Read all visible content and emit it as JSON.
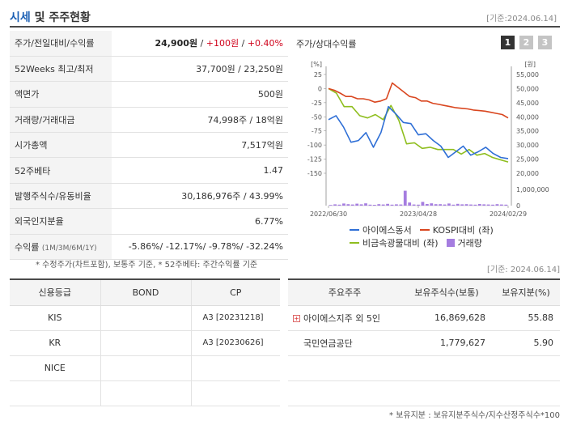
{
  "header": {
    "title_accent": "시세",
    "title_rest": " 및 주주현황",
    "date": "[기준:2024.06.14]"
  },
  "quote": {
    "price_label": "주가/전일대비/수익률",
    "price": "24,900원",
    "sep": " / ",
    "change": "+100원",
    "change_pct": "+0.40%",
    "rows": [
      {
        "label": "52Weeks 최고/최저",
        "value": "37,700원 / 23,250원"
      },
      {
        "label": "액면가",
        "value": "500원"
      },
      {
        "label": "거래량/거래대금",
        "value": "74,998주 / 18억원"
      },
      {
        "label": "시가총액",
        "value": "7,517억원"
      },
      {
        "label": "52주베타",
        "value": "1.47"
      },
      {
        "label": "발행주식수/유동비율",
        "value": "30,186,976주 / 43.99%"
      },
      {
        "label": "외국인지분율",
        "value": "6.77%"
      }
    ],
    "return_label": "수익률",
    "return_periods": "(1M/3M/6M/1Y)",
    "returns": [
      "-5.86%/",
      " -12.17%/",
      " -9.78%/",
      " -32.24%"
    ]
  },
  "chart_panel": {
    "title": "주가/상대수익률",
    "tabs": [
      "1",
      "2",
      "3"
    ],
    "active_tab": 0
  },
  "chart_data": {
    "type": "line",
    "left_axis": {
      "unit": "[%]",
      "ticks": [
        "25",
        "0",
        "-25",
        "-50",
        "-75",
        "-100",
        "-125",
        "-150"
      ],
      "range": [
        -150,
        25
      ]
    },
    "right_axis": {
      "unit": "[원]",
      "ticks": [
        "55,000",
        "50,000",
        "45,000",
        "40,000",
        "35,000",
        "30,000",
        "25,000",
        "20,000"
      ],
      "range": [
        20000,
        55000
      ]
    },
    "volume_axis": {
      "ticks": [
        "1,000,000",
        "0"
      ],
      "range": [
        0,
        1000000
      ]
    },
    "x_ticks": [
      "2022/06/30",
      "2023/04/28",
      "2024/02/29"
    ],
    "x_tick_index": [
      0,
      20,
      40
    ],
    "series": [
      {
        "name": "아이에스동서",
        "color": "#2f6fd6",
        "axis": "left",
        "values": [
          -55,
          -48,
          -68,
          -95,
          -92,
          -78,
          -104,
          -78,
          -32,
          -45,
          -60,
          -62,
          -82,
          -80,
          -92,
          -102,
          -122,
          -112,
          -102,
          -118,
          -112,
          -104,
          -115,
          -122,
          -124
        ]
      },
      {
        "name": "KOSPI대비",
        "color": "#d9461f",
        "axis": "left",
        "values": [
          0,
          -3,
          -8,
          -14,
          -14,
          -18,
          -18,
          -20,
          -24,
          -22,
          -18,
          10,
          2,
          -6,
          -14,
          -16,
          -22,
          -22,
          -26,
          -28,
          -30,
          -32,
          -34,
          -35,
          -36,
          -38,
          -39,
          -40,
          -42,
          -44,
          -46,
          -52
        ]
      },
      {
        "name": "비금속광물대비",
        "color": "#8fbe1f",
        "axis": "left",
        "values": [
          0,
          -8,
          -32,
          -32,
          -48,
          -52,
          -46,
          -55,
          -30,
          -56,
          -98,
          -96,
          -106,
          -104,
          -108,
          -108,
          -108,
          -116,
          -108,
          -118,
          -115,
          -122,
          -126,
          -130
        ]
      },
      {
        "name": "거래량",
        "color": "#a57de0",
        "axis": "volume",
        "values": [
          40000,
          80000,
          60000,
          130000,
          90000,
          70000,
          120000,
          80000,
          140000,
          60000,
          50000,
          90000,
          70000,
          110000,
          60000,
          80000,
          70000,
          920000,
          190000,
          70000,
          60000,
          230000,
          100000,
          140000,
          90000,
          90000,
          70000,
          130000,
          60000,
          110000,
          80000,
          90000,
          70000,
          60000,
          100000,
          80000,
          70000,
          60000,
          90000,
          70000,
          60000
        ]
      }
    ]
  },
  "notes": {
    "left": "* 수정주가(차트포함), 보통주 기준, * 52주베타: 주간수익률 기준",
    "right": "[기준: 2024.06.14]",
    "bottom": "* 보유지분 : 보유지분주식수/지수산정주식수*100"
  },
  "credit": {
    "headers": [
      "신용등급",
      "BOND",
      "CP"
    ],
    "rows": [
      {
        "agency": "KIS",
        "bond": "",
        "cp": "A3 [20231218]"
      },
      {
        "agency": "KR",
        "bond": "",
        "cp": "A3 [20230626]"
      },
      {
        "agency": "NICE",
        "bond": "",
        "cp": ""
      },
      {
        "agency": "",
        "bond": "",
        "cp": ""
      }
    ]
  },
  "holders": {
    "headers": [
      "주요주주",
      "보유주식수(보통)",
      "보유지분(%)"
    ],
    "rows": [
      {
        "name": "아이에스지주 외 5인",
        "shares": "16,869,628",
        "pct": "55.88",
        "expand_icon": "plus-icon"
      },
      {
        "name": "국민연금공단",
        "shares": "1,779,627",
        "pct": "5.90"
      },
      {
        "name": "",
        "shares": "",
        "pct": ""
      },
      {
        "name": "",
        "shares": "",
        "pct": ""
      }
    ]
  }
}
